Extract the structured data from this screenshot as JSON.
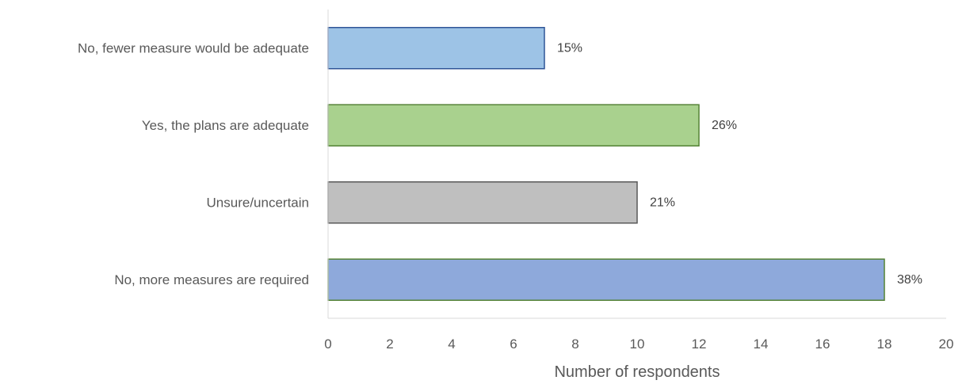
{
  "chart_data": {
    "type": "bar",
    "orientation": "horizontal",
    "categories": [
      "No, fewer measure would be adequate",
      "Yes, the plans are adequate",
      "Unsure/uncertain",
      "No, more measures are required"
    ],
    "values": [
      7,
      12,
      10,
      18
    ],
    "data_labels": [
      "15%",
      "26%",
      "21%",
      "38%"
    ],
    "colors": [
      "#9DC3E6",
      "#A9D18E",
      "#BFBFBF",
      "#8EA9DB"
    ],
    "border_colors": [
      "#2F5597",
      "#548235",
      "#595959",
      "#548235"
    ],
    "xlabel": "Number of respondents",
    "xlim": [
      0,
      20
    ],
    "xticks": [
      "0",
      "2",
      "4",
      "6",
      "8",
      "10",
      "12",
      "14",
      "16",
      "18",
      "20"
    ],
    "grid": false,
    "legend": "none"
  }
}
